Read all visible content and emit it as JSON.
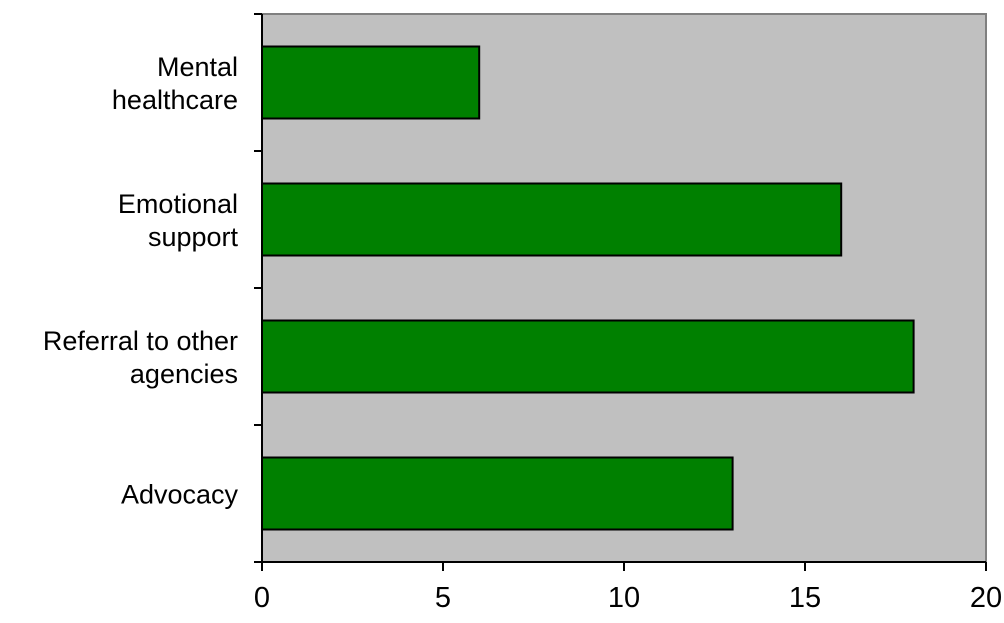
{
  "chart_data": {
    "type": "bar",
    "orientation": "horizontal",
    "categories": [
      [
        "Mental",
        "healthcare"
      ],
      [
        "Emotional",
        "support"
      ],
      [
        "Referral to other",
        "agencies"
      ],
      [
        "Advocacy"
      ]
    ],
    "values": [
      6,
      16,
      18,
      13
    ],
    "xlim": [
      0,
      20
    ],
    "x_ticks": [
      "0",
      "5",
      "10",
      "15",
      "20"
    ],
    "title": "",
    "xlabel": "",
    "ylabel": "",
    "grid": false,
    "legend": "none",
    "colors": {
      "bar": "#008000",
      "plot_background": "#c0c0c0",
      "plot_border": "#808080",
      "axis": "#000000"
    }
  }
}
